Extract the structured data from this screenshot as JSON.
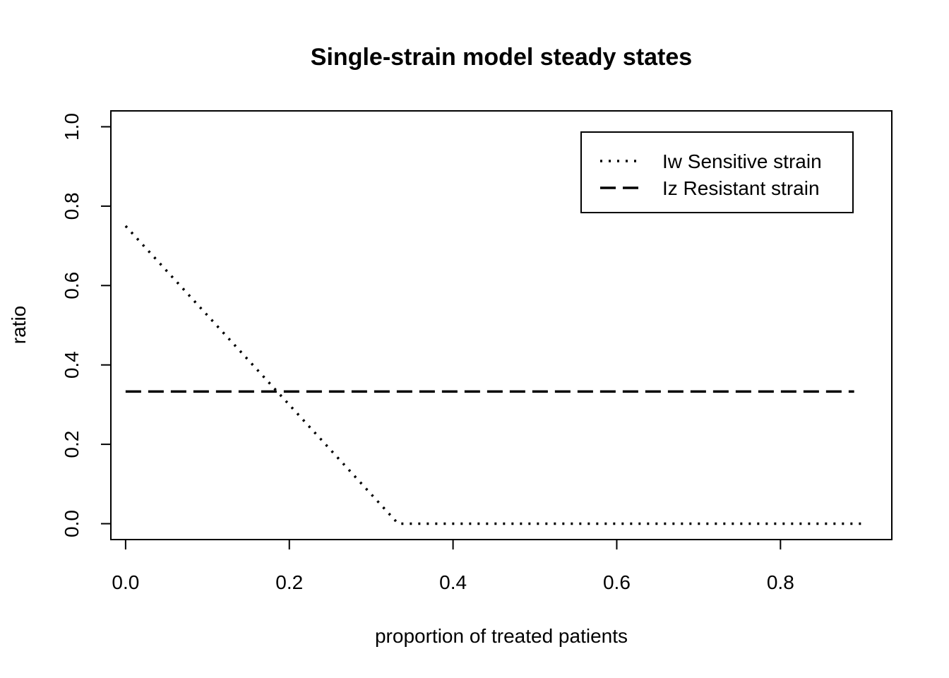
{
  "chart_data": {
    "type": "line",
    "title": "Single-strain model steady states",
    "xlabel": "proportion of treated patients",
    "ylabel": "ratio",
    "xlim": [
      -0.018,
      0.936
    ],
    "ylim": [
      -0.04,
      1.04
    ],
    "x_ticks": [
      0.0,
      0.2,
      0.4,
      0.6,
      0.8
    ],
    "x_tick_labels": [
      "0.0",
      "0.2",
      "0.4",
      "0.6",
      "0.8"
    ],
    "y_ticks": [
      0.0,
      0.2,
      0.4,
      0.6,
      0.8,
      1.0
    ],
    "y_tick_labels": [
      "0.0",
      "0.2",
      "0.4",
      "0.6",
      "0.8",
      "1.0"
    ],
    "grid": false,
    "legend_position": "top-right",
    "series": [
      {
        "name": "Iw Sensitive strain",
        "line_style": "dotted",
        "color": "#000000",
        "x": [
          0.0,
          0.333,
          0.9
        ],
        "y": [
          0.75,
          0.0,
          0.0
        ]
      },
      {
        "name": "Iz Resistant strain",
        "line_style": "dashed",
        "color": "#000000",
        "x": [
          0.0,
          0.89
        ],
        "y": [
          0.333,
          0.333
        ]
      }
    ]
  }
}
